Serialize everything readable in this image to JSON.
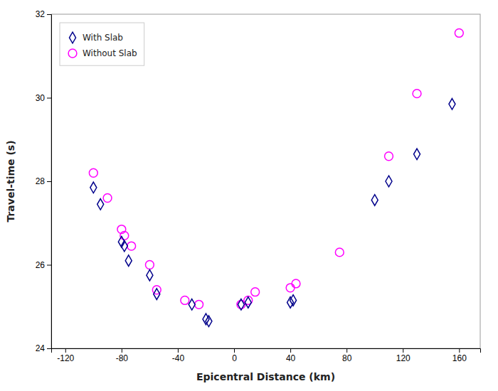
{
  "chart_data": {
    "type": "scatter",
    "x_label": "Epicentral Distance (km)",
    "y_label": "Travel-time (s)",
    "series": [
      {
        "name": "With Slab",
        "color": "#00008B",
        "marker": "diamond",
        "x": [
          -100,
          -95,
          -80,
          -78,
          -75,
          -60,
          -55,
          -30,
          -20,
          -18,
          5,
          10,
          40,
          42,
          100,
          110,
          130,
          155
        ],
        "values": [
          27.85,
          27.45,
          26.55,
          26.45,
          26.1,
          25.75,
          25.3,
          25.05,
          24.7,
          24.65,
          25.05,
          25.1,
          25.1,
          25.15,
          27.55,
          28.0,
          28.65,
          29.85
        ]
      },
      {
        "name": "Without Slab",
        "color": "#FF00FF",
        "marker": "circle",
        "x": [
          -100,
          -90,
          -80,
          -78,
          -73,
          -60,
          -55,
          -35,
          -25,
          5,
          10,
          15,
          40,
          44,
          75,
          110,
          130,
          160
        ],
        "values": [
          28.2,
          27.6,
          26.85,
          26.7,
          26.45,
          26.0,
          25.4,
          25.15,
          25.05,
          25.05,
          25.15,
          25.35,
          25.45,
          25.55,
          26.3,
          28.6,
          30.1,
          31.55
        ]
      }
    ],
    "xlim": [
      -130,
      175
    ],
    "ylim": [
      24,
      32
    ],
    "xticks": [
      -120,
      -80,
      -40,
      0,
      40,
      80,
      120,
      160
    ],
    "yticks": [
      24,
      26,
      28,
      30,
      32
    ],
    "grid": false,
    "legend": "top-left"
  }
}
